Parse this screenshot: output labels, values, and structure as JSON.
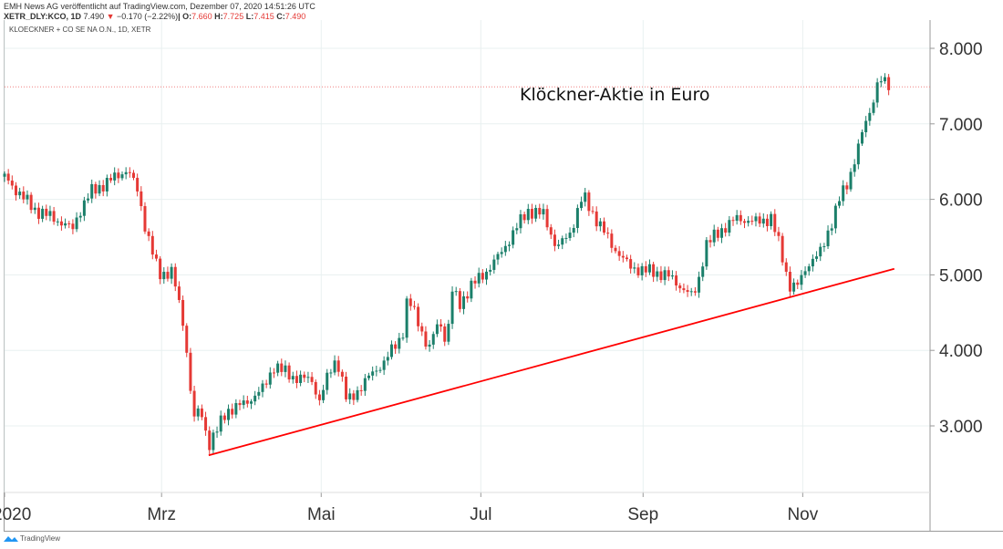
{
  "header": {
    "publisher": "EMH News AG veröffentlicht auf TradingView.com, Dezember 07, 2020 14:51:26 UTC",
    "ticker": "XETR_DLY:KCO, 1D",
    "last": "7.490",
    "change": "−0.170 (−2.22%)",
    "open_label": "O:",
    "open": "7.660",
    "high_label": "H:",
    "high": "7.725",
    "low_label": "L:",
    "low": "7.415",
    "close_label": "C:",
    "close": "7.490"
  },
  "symbol_title": "KLOECKNER + CO SE NA O.N., 1D, XETR",
  "footer": {
    "brand": "TradingView"
  },
  "chart_data": {
    "type": "candlestick",
    "title": "Klöckner-Aktie in Euro",
    "ylim": [
      2.05,
      8.4
    ],
    "yticks": [
      "8.000",
      "7.000",
      "6.000",
      "5.000",
      "4.000",
      "3.000"
    ],
    "ytick_values": [
      8,
      7,
      6,
      5,
      4,
      3
    ],
    "xticks": [
      {
        "label": "2020",
        "day": 0
      },
      {
        "label": "Mrz",
        "day": 60
      },
      {
        "label": "Mai",
        "day": 121
      },
      {
        "label": "Jul",
        "day": 182
      },
      {
        "label": "Sep",
        "day": 244
      },
      {
        "label": "Nov",
        "day": 305
      }
    ],
    "xlim_days": [
      0,
      353
    ],
    "last_price": 7.49,
    "close_anchors_day_price": [
      [
        0,
        6.3
      ],
      [
        5,
        6.1
      ],
      [
        12,
        5.85
      ],
      [
        19,
        5.75
      ],
      [
        26,
        5.6
      ],
      [
        28,
        5.8
      ],
      [
        33,
        6.1
      ],
      [
        38,
        6.2
      ],
      [
        47,
        6.4
      ],
      [
        51,
        6.1
      ],
      [
        54,
        5.6
      ],
      [
        59,
        5.0
      ],
      [
        64,
        5.05
      ],
      [
        68,
        4.4
      ],
      [
        70,
        3.9
      ],
      [
        72,
        3.1
      ],
      [
        75,
        3.2
      ],
      [
        78,
        2.75
      ],
      [
        82,
        3.0
      ],
      [
        85,
        3.2
      ],
      [
        92,
        3.3
      ],
      [
        99,
        3.5
      ],
      [
        103,
        3.8
      ],
      [
        110,
        3.65
      ],
      [
        118,
        3.6
      ],
      [
        120,
        3.3
      ],
      [
        124,
        3.7
      ],
      [
        127,
        3.9
      ],
      [
        131,
        3.3
      ],
      [
        138,
        3.6
      ],
      [
        145,
        3.85
      ],
      [
        152,
        4.2
      ],
      [
        154,
        4.7
      ],
      [
        159,
        4.3
      ],
      [
        162,
        4.0
      ],
      [
        166,
        4.4
      ],
      [
        169,
        4.1
      ],
      [
        171,
        4.8
      ],
      [
        174,
        4.6
      ],
      [
        178,
        4.85
      ],
      [
        183,
        5.0
      ],
      [
        190,
        5.3
      ],
      [
        195,
        5.6
      ],
      [
        200,
        5.85
      ],
      [
        206,
        5.8
      ],
      [
        211,
        5.35
      ],
      [
        216,
        5.55
      ],
      [
        221,
        6.05
      ],
      [
        225,
        5.8
      ],
      [
        232,
        5.4
      ],
      [
        239,
        5.1
      ],
      [
        246,
        5.05
      ],
      [
        253,
        5.0
      ],
      [
        260,
        4.8
      ],
      [
        263,
        4.7
      ],
      [
        265,
        4.9
      ],
      [
        268,
        5.4
      ],
      [
        274,
        5.6
      ],
      [
        280,
        5.75
      ],
      [
        287,
        5.7
      ],
      [
        293,
        5.75
      ],
      [
        296,
        5.4
      ],
      [
        300,
        4.85
      ],
      [
        303,
        4.85
      ],
      [
        307,
        5.15
      ],
      [
        312,
        5.3
      ],
      [
        315,
        5.6
      ],
      [
        319,
        6.0
      ],
      [
        322,
        6.2
      ],
      [
        328,
        6.9
      ],
      [
        331,
        7.2
      ],
      [
        334,
        7.6
      ],
      [
        338,
        7.49
      ]
    ],
    "trendline": {
      "start": [
        78,
        2.61
      ],
      "end": [
        340,
        5.08
      ]
    },
    "colors": {
      "up": "#1b7f6a",
      "down": "#e53935",
      "trend": "#ff0000"
    }
  }
}
